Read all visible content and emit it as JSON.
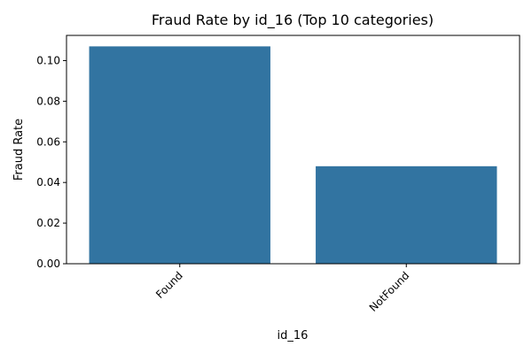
{
  "chart_data": {
    "type": "bar",
    "title": "Fraud Rate by id_16 (Top 10 categories)",
    "xlabel": "id_16",
    "ylabel": "Fraud Rate",
    "categories": [
      "Found",
      "NotFound"
    ],
    "values": [
      0.107,
      0.048
    ],
    "ylim": [
      0,
      0.1124
    ],
    "yticks": [
      0.0,
      0.02,
      0.04,
      0.06,
      0.08,
      0.1
    ],
    "ytick_labels": [
      "0.00",
      "0.02",
      "0.04",
      "0.06",
      "0.08",
      "0.10"
    ],
    "xtick_rotation_deg": 45,
    "bar_color": "#3274a1",
    "grid": false,
    "legend": "none"
  }
}
